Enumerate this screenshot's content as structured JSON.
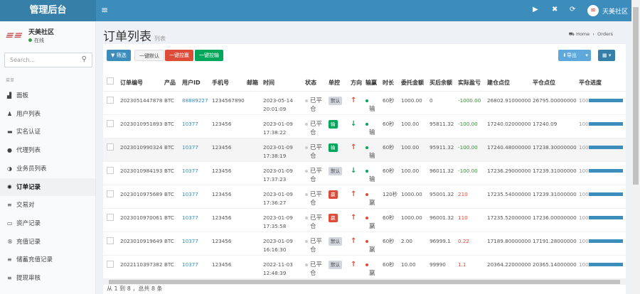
{
  "app": {
    "title": "管理后台",
    "user": "天美社区"
  },
  "sidebar": {
    "user_name": "天美社区",
    "status": "在线",
    "search_placeholder": "Search...",
    "section": "菜单",
    "items": [
      {
        "label": "面板",
        "icon": "dashboard-icon",
        "glyph": "▟"
      },
      {
        "label": "用户列表",
        "icon": "user-icon",
        "glyph": "♟"
      },
      {
        "label": "实名认证",
        "icon": "id-card-icon",
        "glyph": "▬"
      },
      {
        "label": "代理列表",
        "icon": "agent-icon",
        "glyph": "●"
      },
      {
        "label": "业务员列表",
        "icon": "half-circle-icon",
        "glyph": "◑"
      },
      {
        "label": "订单记录",
        "icon": "orders-icon",
        "glyph": "✺",
        "active": true
      },
      {
        "label": "交易对",
        "icon": "list-icon",
        "glyph": "≡"
      },
      {
        "label": "资产记录",
        "icon": "money-icon",
        "glyph": "▭"
      },
      {
        "label": "充值记录",
        "icon": "registered-icon",
        "glyph": "®"
      },
      {
        "label": "储蓄充值记录",
        "icon": "list-icon",
        "glyph": "≡"
      },
      {
        "label": "提现审核",
        "icon": "list-icon",
        "glyph": "≡"
      }
    ]
  },
  "page": {
    "title": "订单列表",
    "subtitle": "列表",
    "breadcrumb": [
      "Home",
      "Orders"
    ]
  },
  "toolbar": {
    "filter": "筛选",
    "default": "一键默认",
    "win": "一键控赢",
    "lose": "一键控输",
    "export": "导出",
    "colors": {
      "filter": "#3c8dbc",
      "win": "#dd4b39",
      "lose": "#00a65a",
      "export": "#5fa8dc",
      "columns": "#367fa9"
    }
  },
  "table": {
    "headers": [
      "订单编号",
      "产品",
      "用户ID",
      "手机号",
      "邮箱",
      "时间",
      "状态",
      "单控",
      "方向",
      "输赢",
      "时长",
      "委托金额",
      "买后余额",
      "实际盈亏",
      "建仓点位",
      "平仓点位",
      "平仓进度"
    ],
    "rows": [
      {
        "id": "2023051447878",
        "product": "BTC",
        "uid": "88889227",
        "phone": "1234567890",
        "email": "",
        "date": "2023-05-14",
        "time": "20:01:09",
        "status": "已平仓",
        "control": "默认",
        "direction": "up",
        "result": "输",
        "duration": "60秒",
        "amount": "1000.00",
        "balance": "0",
        "pnl": "-1000.00",
        "open": "26802.91000000",
        "close": "26795.00000000",
        "progress": 100
      },
      {
        "id": "2023010951893",
        "product": "BTC",
        "uid": "10377",
        "phone": "123456",
        "email": "",
        "date": "2023-01-09",
        "time": "17:38:22",
        "status": "已平仓",
        "control": "输",
        "direction": "down",
        "result": "输",
        "duration": "60秒",
        "amount": "100.00",
        "balance": "95811.32",
        "pnl": "-100.00",
        "open": "17240.02000000",
        "close": "17240.09",
        "progress": 100
      },
      {
        "id": "2023010990324",
        "product": "BTC",
        "uid": "10377",
        "phone": "123456",
        "email": "",
        "date": "2023-01-09",
        "time": "17:38:19",
        "status": "已平仓",
        "control": "输",
        "direction": "up",
        "result": "输",
        "duration": "60秒",
        "amount": "100.00",
        "balance": "95911.32",
        "pnl": "-100.00",
        "open": "17240.48000000",
        "close": "17238.30000000",
        "progress": 100
      },
      {
        "id": "2023010984193",
        "product": "BTC",
        "uid": "10377",
        "phone": "123456",
        "email": "",
        "date": "2023-01-09",
        "time": "17:37:23",
        "status": "已平仓",
        "control": "默认",
        "direction": "down",
        "result": "输",
        "duration": "60秒",
        "amount": "100.00",
        "balance": "96011.32",
        "pnl": "-100.00",
        "open": "17236.29000000",
        "close": "17239.31000000",
        "progress": 100
      },
      {
        "id": "2023010975689",
        "product": "BTC",
        "uid": "10377",
        "phone": "123456",
        "email": "",
        "date": "2023-01-09",
        "time": "17:36:27",
        "status": "已平仓",
        "control": "赢",
        "direction": "up",
        "result": "赢",
        "duration": "120秒",
        "amount": "1000.00",
        "balance": "95001.32",
        "pnl": "210",
        "open": "17235.54000000",
        "close": "17239.31000000",
        "progress": 100
      },
      {
        "id": "2023010970061",
        "product": "BTC",
        "uid": "10377",
        "phone": "123456",
        "email": "",
        "date": "2023-01-09",
        "time": "17:35:58",
        "status": "已平仓",
        "control": "赢",
        "direction": "up",
        "result": "赢",
        "duration": "60秒",
        "amount": "1000.00",
        "balance": "96001.32",
        "pnl": "110",
        "open": "17235.52000000",
        "close": "17236.00000000",
        "progress": 100
      },
      {
        "id": "2023010919649",
        "product": "BTC",
        "uid": "10377",
        "phone": "123456",
        "email": "",
        "date": "2023-01-09",
        "time": "16:16:30",
        "status": "已平仓",
        "control": "默认",
        "direction": "up",
        "result": "赢",
        "duration": "60秒",
        "amount": "2.00",
        "balance": "96999.1",
        "pnl": "0.22",
        "open": "17189.80000000",
        "close": "17191.28000000",
        "progress": 100
      },
      {
        "id": "2022110397382",
        "product": "BTC",
        "uid": "10377",
        "phone": "123456",
        "email": "",
        "date": "2022-11-03",
        "time": "12:48:39",
        "status": "已平仓",
        "control": "默认",
        "direction": "up",
        "result": "赢",
        "duration": "60秒",
        "amount": "10.00",
        "balance": "99990",
        "pnl": "1.1",
        "open": "20364.22000000",
        "close": "20365.14000000",
        "progress": 100
      }
    ]
  },
  "pagination": {
    "summary": "从 1 到 8 ，总共 8 条"
  }
}
